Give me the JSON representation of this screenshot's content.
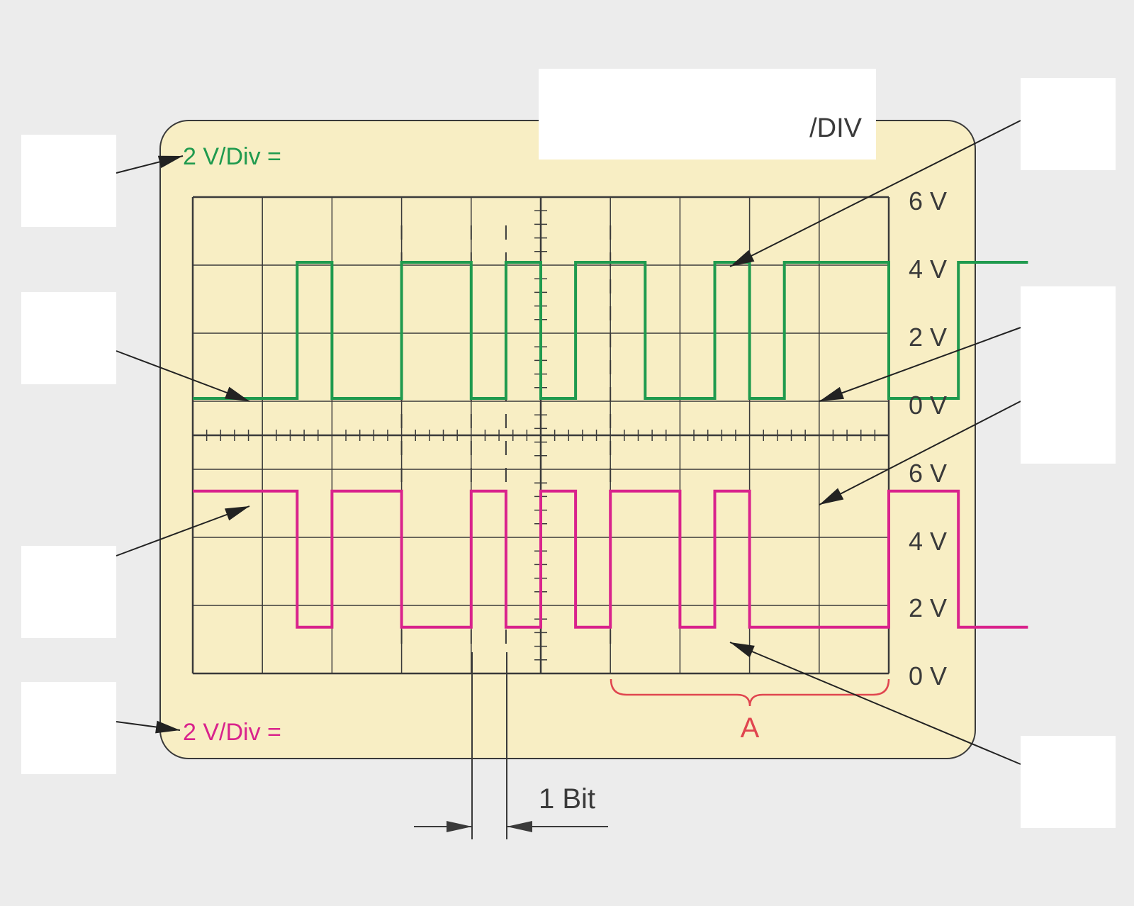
{
  "colors": {
    "background": "#ececec",
    "screen": "#f8eec4",
    "grid": "#3a3a3a",
    "channel1": "#1f9a4e",
    "channel2": "#d9238c",
    "bracket": "#e0454f",
    "label_box": "#ffffff"
  },
  "channel1": {
    "scale_label": "2 V/Div =",
    "color_name": "green"
  },
  "channel2": {
    "scale_label": "2 V/Div =",
    "color_name": "magenta"
  },
  "timebase": {
    "unit_label": "/DIV"
  },
  "voltage_scale_upper": [
    "6 V",
    "4 V",
    "2 V",
    "0 V"
  ],
  "voltage_scale_lower": [
    "6 V",
    "4 V",
    "2 V",
    "0 V"
  ],
  "bit_label": "1 Bit",
  "bracket_label": "A",
  "answer_boxes": {
    "count": 8,
    "content": "blank"
  },
  "chart_data": {
    "type": "line",
    "x_unit": "bit periods",
    "series": [
      {
        "color": "#1f9a4e",
        "levels_V": [
          0,
          0,
          0,
          4,
          0,
          0,
          4,
          4,
          0,
          4,
          0,
          4,
          4,
          0,
          0,
          4,
          0,
          4,
          4,
          4,
          0,
          0,
          4,
          4
        ],
        "range_V": [
          0,
          6
        ]
      },
      {
        "color": "#d9238c",
        "levels_V": [
          4,
          4,
          4,
          0,
          4,
          4,
          0,
          0,
          4,
          0,
          4,
          0,
          4,
          4,
          0,
          4,
          0,
          0,
          0,
          0,
          4,
          4,
          0,
          0
        ],
        "range_V": [
          0,
          6
        ]
      }
    ],
    "ylim": [
      0,
      6
    ]
  }
}
